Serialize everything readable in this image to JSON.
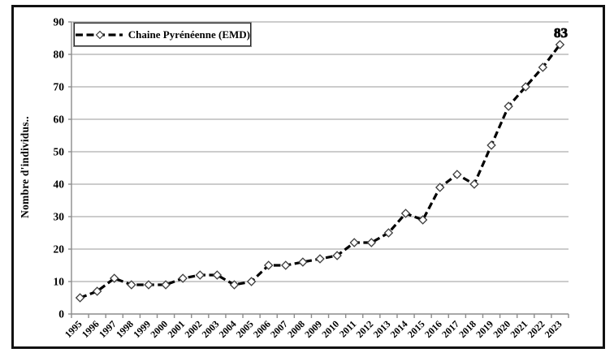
{
  "figure": {
    "legend_label": "Chaine Pyrénéenne (EMD)",
    "y_axis_title": "Nombre d'individus..",
    "end_point_label": "83"
  },
  "chart_data": {
    "type": "line",
    "title": "",
    "xlabel": "",
    "ylabel": "Nombre d'individus..",
    "ylim": [
      0,
      90
    ],
    "y_ticks": [
      0,
      10,
      20,
      30,
      40,
      50,
      60,
      70,
      80,
      90
    ],
    "grid": true,
    "legend_position": "top-left",
    "line_style": "dashed",
    "marker": "open-diamond",
    "colors": {
      "line": "#000000",
      "marker_fill": "#ffffff",
      "marker_stroke": "#3d3d3d",
      "grid": "#adadad",
      "axis": "#8c8c8c",
      "text": "#000000"
    },
    "categories": [
      "1995",
      "1996",
      "1997",
      "1998",
      "1999",
      "2000",
      "2001",
      "2002",
      "2003",
      "2004",
      "2005",
      "2006",
      "2007",
      "2008",
      "2009",
      "2010",
      "2011",
      "2012",
      "2013",
      "2014",
      "2015",
      "2016",
      "2017",
      "2018",
      "2019",
      "2020",
      "2021",
      "2022",
      "2023"
    ],
    "series": [
      {
        "name": "Chaine Pyrénéenne (EMD)",
        "values": [
          5,
          7,
          11,
          9,
          9,
          9,
          11,
          12,
          12,
          9,
          10,
          15,
          15,
          16,
          17,
          18,
          22,
          22,
          25,
          31,
          29,
          39,
          43,
          40,
          52,
          64,
          70,
          76,
          83
        ]
      }
    ],
    "annotations": [
      {
        "category": "2023",
        "value": 83,
        "text": "83"
      }
    ]
  }
}
